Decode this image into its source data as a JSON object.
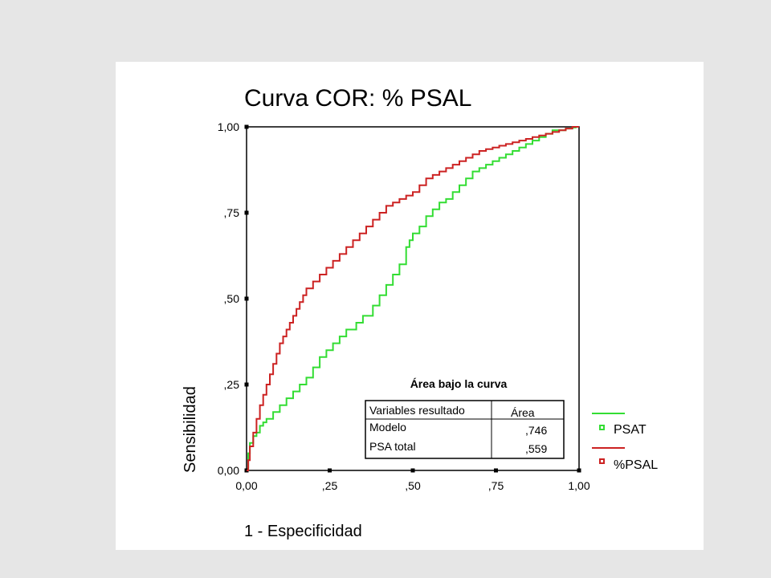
{
  "chart_data": {
    "type": "line",
    "title": "Curva COR: % PSAL",
    "xlabel": "1 - Especificidad",
    "ylabel": "Sensibilidad",
    "xlim": [
      0,
      1
    ],
    "ylim": [
      0,
      1
    ],
    "x_ticks": [
      "0,00",
      ",25",
      ",50",
      ",75",
      "1,00"
    ],
    "y_ticks": [
      "0,00",
      ",25",
      ",50",
      ",75",
      "1,00"
    ],
    "legend_position": "right",
    "series": [
      {
        "name": "PSAT",
        "color": "#33dd33",
        "x": [
          0,
          0.005,
          0.01,
          0.02,
          0.03,
          0.04,
          0.05,
          0.06,
          0.08,
          0.1,
          0.12,
          0.14,
          0.16,
          0.18,
          0.2,
          0.22,
          0.24,
          0.26,
          0.28,
          0.3,
          0.33,
          0.35,
          0.38,
          0.4,
          0.42,
          0.44,
          0.46,
          0.48,
          0.49,
          0.5,
          0.52,
          0.54,
          0.56,
          0.58,
          0.6,
          0.62,
          0.64,
          0.66,
          0.68,
          0.7,
          0.72,
          0.74,
          0.76,
          0.78,
          0.8,
          0.82,
          0.84,
          0.86,
          0.88,
          0.9,
          0.92,
          0.94,
          0.96,
          0.98,
          0.99,
          1.0
        ],
        "y": [
          0,
          0.05,
          0.08,
          0.1,
          0.11,
          0.13,
          0.14,
          0.15,
          0.17,
          0.19,
          0.21,
          0.23,
          0.25,
          0.27,
          0.3,
          0.33,
          0.35,
          0.37,
          0.39,
          0.41,
          0.43,
          0.45,
          0.48,
          0.51,
          0.54,
          0.57,
          0.6,
          0.65,
          0.67,
          0.69,
          0.71,
          0.74,
          0.76,
          0.78,
          0.79,
          0.81,
          0.83,
          0.85,
          0.87,
          0.88,
          0.89,
          0.9,
          0.91,
          0.92,
          0.93,
          0.94,
          0.95,
          0.96,
          0.97,
          0.98,
          0.99,
          0.99,
          0.995,
          0.998,
          1.0,
          1.0
        ]
      },
      {
        "name": "%PSAL",
        "color": "#cc2222",
        "x": [
          0,
          0.005,
          0.01,
          0.02,
          0.03,
          0.04,
          0.05,
          0.06,
          0.07,
          0.08,
          0.09,
          0.1,
          0.11,
          0.12,
          0.13,
          0.14,
          0.15,
          0.16,
          0.17,
          0.18,
          0.2,
          0.22,
          0.24,
          0.26,
          0.28,
          0.3,
          0.32,
          0.34,
          0.36,
          0.38,
          0.4,
          0.42,
          0.44,
          0.46,
          0.48,
          0.5,
          0.52,
          0.54,
          0.56,
          0.58,
          0.6,
          0.62,
          0.64,
          0.66,
          0.68,
          0.7,
          0.72,
          0.74,
          0.76,
          0.78,
          0.8,
          0.82,
          0.84,
          0.86,
          0.88,
          0.9,
          0.92,
          0.94,
          0.96,
          0.98,
          1.0
        ],
        "y": [
          0,
          0.03,
          0.07,
          0.11,
          0.15,
          0.19,
          0.22,
          0.25,
          0.28,
          0.31,
          0.34,
          0.37,
          0.39,
          0.41,
          0.43,
          0.45,
          0.47,
          0.49,
          0.51,
          0.53,
          0.55,
          0.57,
          0.59,
          0.61,
          0.63,
          0.65,
          0.67,
          0.69,
          0.71,
          0.73,
          0.75,
          0.77,
          0.78,
          0.79,
          0.8,
          0.81,
          0.83,
          0.85,
          0.86,
          0.87,
          0.88,
          0.89,
          0.9,
          0.91,
          0.92,
          0.93,
          0.935,
          0.94,
          0.945,
          0.95,
          0.955,
          0.96,
          0.965,
          0.97,
          0.975,
          0.98,
          0.985,
          0.99,
          0.995,
          1.0,
          1.0
        ]
      }
    ],
    "auc_table": {
      "title": "Área bajo la curva",
      "header": [
        "Variables resultado",
        "Área"
      ],
      "rows": [
        [
          "Modelo",
          ",746"
        ],
        [
          "PSA total",
          ",559"
        ]
      ]
    }
  }
}
